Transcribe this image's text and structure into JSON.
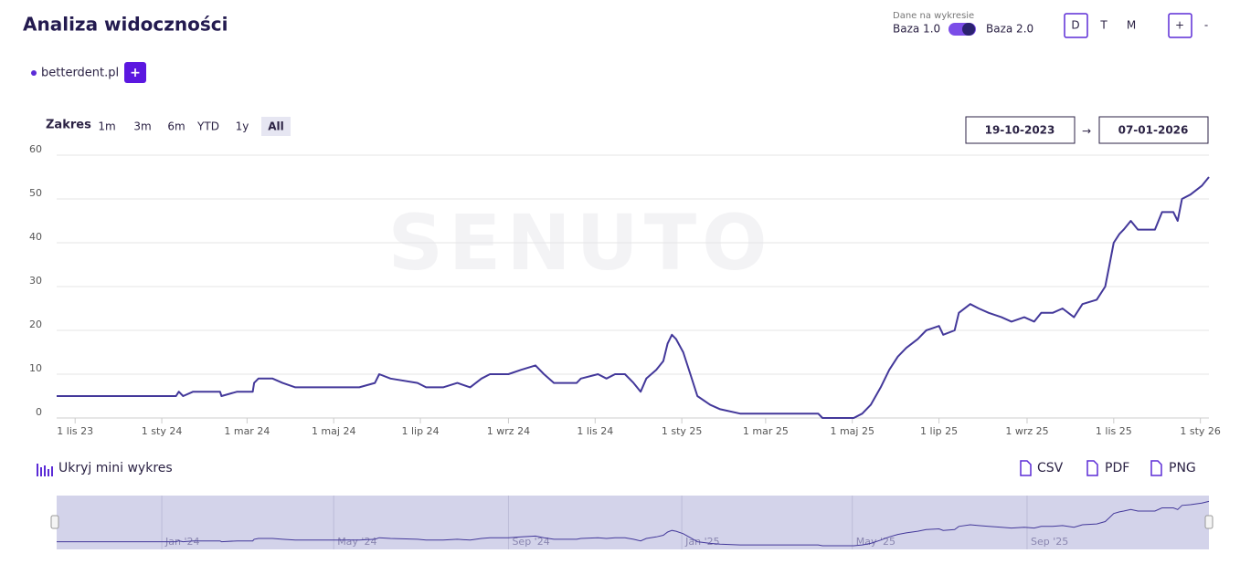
{
  "ui": {
    "title": "Analiza widoczności",
    "data_label": "Dane na wykresie",
    "base1": "Baza 1.0",
    "base2": "Baza 2.0",
    "periods": [
      "D",
      "T",
      "M"
    ],
    "zoom": [
      "+",
      "-"
    ],
    "domain": "betterdent.pl",
    "add": "+",
    "range_label": "Zakres",
    "ranges": [
      "1m",
      "3m",
      "6m",
      "YTD",
      "1y",
      "All"
    ],
    "date_from": "19-10-2023",
    "arrow": "→",
    "date_to": "07-01-2026",
    "watermark": "SENUTO",
    "hide_mini": "Ukryj mini wykres",
    "exports": [
      "CSV",
      "PDF",
      "PNG"
    ]
  },
  "chart_data": {
    "type": "line",
    "x": [
      "2023-10-19",
      "2024-01-11",
      "2024-01-13",
      "2024-01-16",
      "2024-01-23",
      "2024-02-11",
      "2024-02-12",
      "2024-02-23",
      "2024-03-05",
      "2024-03-06",
      "2024-03-09",
      "2024-03-19",
      "2024-03-26",
      "2024-04-04",
      "2024-04-13",
      "2024-05-19",
      "2024-05-30",
      "2024-06-02",
      "2024-06-10",
      "2024-06-29",
      "2024-07-05",
      "2024-07-17",
      "2024-07-27",
      "2024-08-05",
      "2024-08-13",
      "2024-08-19",
      "2024-09-01",
      "2024-09-10",
      "2024-09-20",
      "2024-09-26",
      "2024-10-03",
      "2024-10-19",
      "2024-10-22",
      "2024-11-03",
      "2024-11-09",
      "2024-11-15",
      "2024-11-22",
      "2024-11-28",
      "2024-12-03",
      "2024-12-07",
      "2024-12-14",
      "2024-12-19",
      "2024-12-22",
      "2024-12-25",
      "2024-12-28",
      "2025-01-02",
      "2025-01-07",
      "2025-01-12",
      "2025-01-21",
      "2025-01-28",
      "2025-02-11",
      "2025-04-07",
      "2025-04-10",
      "2025-05-02",
      "2025-05-08",
      "2025-05-14",
      "2025-05-21",
      "2025-05-27",
      "2025-06-02",
      "2025-06-08",
      "2025-06-16",
      "2025-06-22",
      "2025-07-01",
      "2025-07-04",
      "2025-07-12",
      "2025-07-15",
      "2025-07-23",
      "2025-07-29",
      "2025-08-05",
      "2025-08-14",
      "2025-08-21",
      "2025-08-30",
      "2025-09-06",
      "2025-09-11",
      "2025-09-19",
      "2025-09-26",
      "2025-10-04",
      "2025-10-10",
      "2025-10-20",
      "2025-10-26",
      "2025-10-29",
      "2025-11-01",
      "2025-11-05",
      "2025-11-08",
      "2025-11-13",
      "2025-11-18",
      "2025-11-30",
      "2025-12-05",
      "2025-12-13",
      "2025-12-16",
      "2025-12-19",
      "2025-12-25",
      "2026-01-02",
      "2026-01-07"
    ],
    "series": [
      {
        "color": "#43389a",
        "values": [
          5,
          5,
          6,
          5,
          6,
          6,
          5,
          6,
          6,
          8,
          9,
          9,
          8,
          7,
          7,
          7,
          8,
          10,
          9,
          8,
          7,
          7,
          8,
          7,
          9,
          10,
          10,
          11,
          12,
          10,
          8,
          8,
          9,
          10,
          9,
          10,
          10,
          8,
          6,
          9,
          11,
          13,
          17,
          19,
          18,
          15,
          10,
          5,
          3,
          2,
          1,
          1,
          0,
          0,
          1,
          3,
          7,
          11,
          14,
          16,
          18,
          20,
          21,
          19,
          20,
          24,
          26,
          25,
          24,
          23,
          22,
          23,
          22,
          24,
          24,
          25,
          23,
          26,
          27,
          30,
          35,
          40,
          42,
          43,
          45,
          43,
          43,
          47,
          47,
          45,
          50,
          51,
          53,
          55
        ]
      }
    ],
    "xlim": [
      "2023-10-19",
      "2026-01-07"
    ],
    "xticks": [
      {
        "value": "2023-11-01",
        "label": "1 lis 23"
      },
      {
        "value": "2024-01-01",
        "label": "1 sty 24"
      },
      {
        "value": "2024-03-01",
        "label": "1 mar 24"
      },
      {
        "value": "2024-05-01",
        "label": "1 maj 24"
      },
      {
        "value": "2024-07-01",
        "label": "1 lip 24"
      },
      {
        "value": "2024-09-01",
        "label": "1 wrz 24"
      },
      {
        "value": "2024-11-01",
        "label": "1 lis 24"
      },
      {
        "value": "2025-01-01",
        "label": "1 sty 25"
      },
      {
        "value": "2025-03-01",
        "label": "1 mar 25"
      },
      {
        "value": "2025-05-01",
        "label": "1 maj 25"
      },
      {
        "value": "2025-07-01",
        "label": "1 lip 25"
      },
      {
        "value": "2025-09-01",
        "label": "1 wrz 25"
      },
      {
        "value": "2025-11-01",
        "label": "1 lis 25"
      },
      {
        "value": "2026-01-01",
        "label": "1 sty 26"
      }
    ],
    "ylim": [
      0,
      60
    ],
    "yticks": [
      0,
      10,
      20,
      30,
      40,
      50,
      60
    ],
    "grid": true,
    "navigator_xticks": [
      {
        "value": "2024-01-01",
        "label": "Jan '24"
      },
      {
        "value": "2024-05-01",
        "label": "May '24"
      },
      {
        "value": "2024-09-01",
        "label": "Sep '24"
      },
      {
        "value": "2025-01-01",
        "label": "Jan '25"
      },
      {
        "value": "2025-05-01",
        "label": "May '25"
      },
      {
        "value": "2025-09-01",
        "label": "Sep '25"
      }
    ]
  }
}
